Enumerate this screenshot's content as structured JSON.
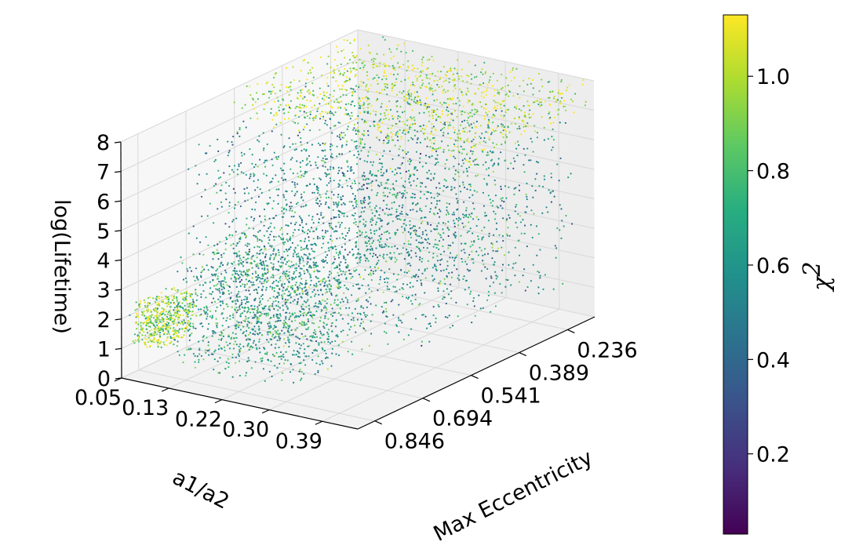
{
  "chart_data": {
    "type": "scatter",
    "projection": "3d",
    "title": "",
    "xlabel": "a1/a2",
    "ylabel": "Max Eccentricity",
    "zlabel": "log(Lifetime)",
    "colorbar_label": "χ",
    "colorbar_label_superscript": "2",
    "colormap": "viridis",
    "grid": true,
    "x_ticks": [
      "0.05",
      "0.13",
      "0.22",
      "0.30",
      "0.39"
    ],
    "y_ticks": [
      "0.236",
      "0.389",
      "0.541",
      "0.694",
      "0.846"
    ],
    "z_ticks": [
      "0",
      "1",
      "2",
      "3",
      "4",
      "5",
      "6",
      "7",
      "8"
    ],
    "colorbar_ticks": [
      "0.2",
      "0.4",
      "0.6",
      "0.8",
      "1.0"
    ],
    "colorbar_range": [
      0.03,
      1.13
    ],
    "xlim": [
      0.05,
      0.45
    ],
    "ylim": [
      0.15,
      0.9
    ],
    "zlim": [
      0,
      8
    ],
    "regions": [
      {
        "x": [
          0.05,
          0.1
        ],
        "y": [
          0.75,
          0.88
        ],
        "z": [
          1.0,
          2.4
        ],
        "chi2_mean": 0.95
      },
      {
        "x": [
          0.1,
          0.3
        ],
        "y": [
          0.55,
          0.85
        ],
        "z": [
          0.3,
          4.0
        ],
        "chi2_mean": 0.65
      },
      {
        "x": [
          0.05,
          0.45
        ],
        "y": [
          0.2,
          0.7
        ],
        "z": [
          1.5,
          7.0
        ],
        "chi2_mean": 0.6
      },
      {
        "x": [
          0.05,
          0.45
        ],
        "y": [
          0.15,
          0.55
        ],
        "z": [
          7.0,
          8.0
        ],
        "chi2_mean": 1.0
      }
    ]
  }
}
